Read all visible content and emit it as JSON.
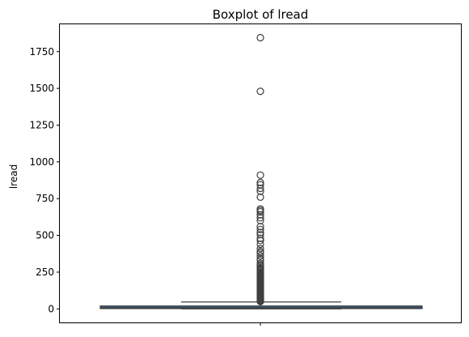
{
  "chart_data": {
    "type": "box",
    "title": "Boxplot of lread",
    "xlabel": "",
    "ylabel": "lread",
    "ylim": [
      -92,
      1936
    ],
    "yticks": [
      0,
      250,
      500,
      750,
      1000,
      1250,
      1500,
      1750
    ],
    "ytick_labels": [
      "0",
      "250",
      "500",
      "750",
      "1000",
      "1250",
      "1500",
      "1750"
    ],
    "grid": false,
    "box": {
      "whisker_low": 0,
      "q1": 2,
      "median": 7,
      "q3": 20,
      "whisker_high": 47,
      "fill_color": "#3e5f8f",
      "edge_color": "#3f3f3f"
    },
    "outliers": [
      1845,
      1480,
      910,
      860,
      845,
      820,
      800,
      760,
      680,
      670,
      660,
      640,
      620,
      600,
      560,
      540,
      520,
      505,
      480,
      465,
      440,
      410,
      390,
      380,
      360,
      340,
      330,
      310,
      300,
      290,
      280,
      275,
      270,
      260,
      250,
      245,
      240,
      235,
      230,
      225,
      220,
      215,
      210,
      205,
      200,
      195,
      190,
      185,
      180,
      175,
      170,
      165,
      160,
      155,
      150,
      145,
      140,
      135,
      130,
      125,
      120,
      115,
      110,
      105,
      100,
      95,
      90,
      85,
      80,
      75,
      70,
      65,
      60,
      55,
      50
    ]
  }
}
